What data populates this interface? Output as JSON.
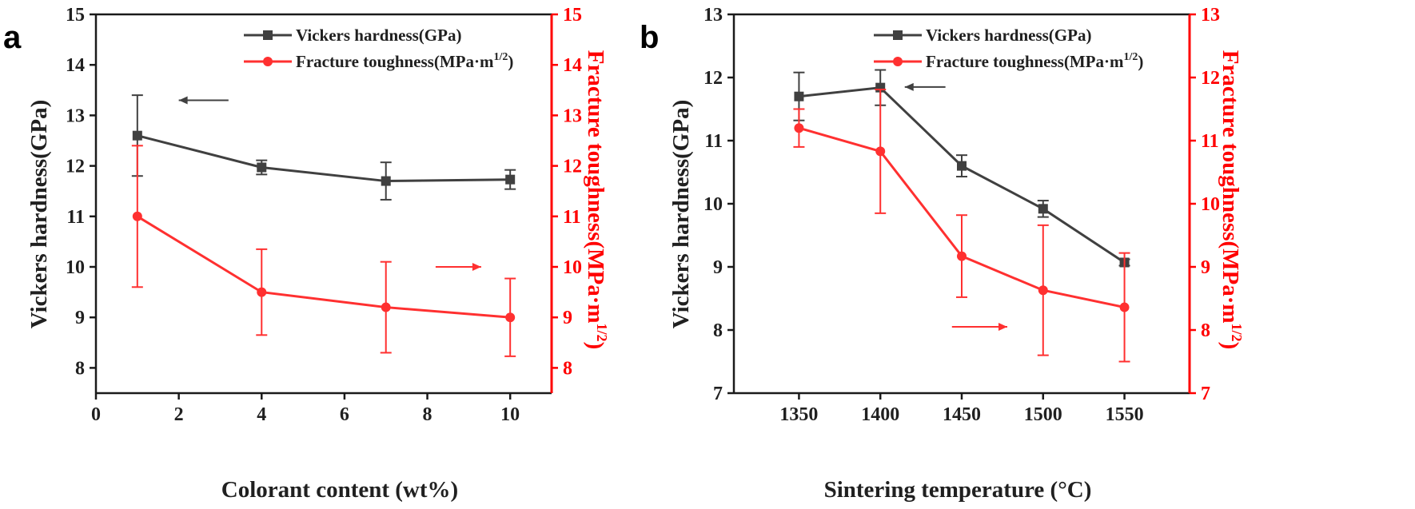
{
  "colors": {
    "black": "#404040",
    "red": "#ff3030",
    "axis_right": "#ff0000"
  },
  "chart_data": [
    {
      "panel": "a",
      "type": "line",
      "xlabel": "Colorant content (wt%)",
      "ylabel_left": "Vickers hardness(GPa)",
      "ylabel_right": "Fracture toughness(MPa·m",
      "ylabel_right_sup": "1/2",
      "ylabel_right_close": ")",
      "xlim": [
        0,
        11
      ],
      "xticks": [
        0,
        2,
        4,
        6,
        8,
        10
      ],
      "xtick_labels": [
        "0",
        "2",
        "4",
        "6",
        "8",
        "10"
      ],
      "ylim_left": [
        7.5,
        15
      ],
      "yticks_left": [
        8,
        9,
        10,
        11,
        12,
        13,
        14,
        15
      ],
      "ylim_right": [
        7.5,
        15
      ],
      "yticks_right": [
        8,
        9,
        10,
        11,
        12,
        13,
        14,
        15
      ],
      "legend": [
        {
          "name": "Vickers hardness(GPa)",
          "sup": "",
          "tail": "",
          "marker": "square"
        },
        {
          "name": "Fracture toughness(MPa·m",
          "sup": "1/2",
          "tail": ")",
          "marker": "circle"
        }
      ],
      "series": [
        {
          "name": "Vickers hardness(GPa)",
          "axis": "left",
          "color": "#404040",
          "marker": "square",
          "x": [
            1,
            4,
            7,
            10
          ],
          "y": [
            12.6,
            11.97,
            11.7,
            11.73
          ],
          "err": [
            0.8,
            0.14,
            0.37,
            0.19
          ]
        },
        {
          "name": "Fracture toughness(MPa·m1/2)",
          "axis": "right",
          "color": "#ff3030",
          "marker": "circle",
          "x": [
            1,
            4,
            7,
            10
          ],
          "y": [
            11.0,
            9.5,
            9.2,
            9.0
          ],
          "err": [
            1.4,
            0.85,
            0.9,
            0.77
          ]
        }
      ],
      "arrows": [
        {
          "dir": "left",
          "color": "#404040",
          "axis": "left",
          "x_from": 3.2,
          "x_to": 2.0,
          "y": 13.3
        },
        {
          "dir": "right",
          "color": "#ff3030",
          "axis": "right",
          "x_from": 8.2,
          "x_to": 9.3,
          "y": 10.0
        }
      ]
    },
    {
      "panel": "b",
      "type": "line",
      "xlabel": "Sintering temperature (°C)",
      "ylabel_left": "Vickers hardness(GPa)",
      "ylabel_right": "Fracture toughness(MPa·m",
      "ylabel_right_sup": "1/2",
      "ylabel_right_close": ")",
      "xlim": [
        1310,
        1590
      ],
      "xticks": [
        1350,
        1400,
        1450,
        1500,
        1550
      ],
      "xtick_labels": [
        "1350",
        "1400",
        "1450",
        "1500",
        "1550"
      ],
      "ylim_left": [
        7,
        13
      ],
      "yticks_left": [
        7,
        8,
        9,
        10,
        11,
        12,
        13
      ],
      "ylim_right": [
        7,
        13
      ],
      "yticks_right": [
        7,
        8,
        9,
        10,
        11,
        12,
        13
      ],
      "legend": [
        {
          "name": "Vickers hardness(GPa)",
          "sup": "",
          "tail": "",
          "marker": "square"
        },
        {
          "name": "Fracture toughness(MPa·m",
          "sup": "1/2",
          "tail": ")",
          "marker": "circle"
        }
      ],
      "series": [
        {
          "name": "Vickers hardness(GPa)",
          "axis": "left",
          "color": "#404040",
          "marker": "square",
          "x": [
            1350,
            1400,
            1450,
            1500,
            1550
          ],
          "y": [
            11.7,
            11.84,
            10.6,
            9.92,
            9.07
          ],
          "err": [
            0.38,
            0.28,
            0.17,
            0.13,
            0.05
          ]
        },
        {
          "name": "Fracture toughness(MPa·m1/2)",
          "axis": "right",
          "color": "#ff3030",
          "marker": "circle",
          "x": [
            1350,
            1400,
            1450,
            1500,
            1550
          ],
          "y": [
            11.2,
            10.83,
            9.17,
            8.63,
            8.36
          ],
          "err": [
            0.3,
            0.98,
            0.65,
            1.03,
            0.86
          ]
        }
      ],
      "arrows": [
        {
          "dir": "left",
          "color": "#404040",
          "axis": "left",
          "x_from": 1440,
          "x_to": 1415,
          "y": 11.85
        },
        {
          "dir": "right",
          "color": "#ff3030",
          "axis": "right",
          "x_from": 1444,
          "x_to": 1478,
          "y": 8.05
        }
      ]
    }
  ]
}
